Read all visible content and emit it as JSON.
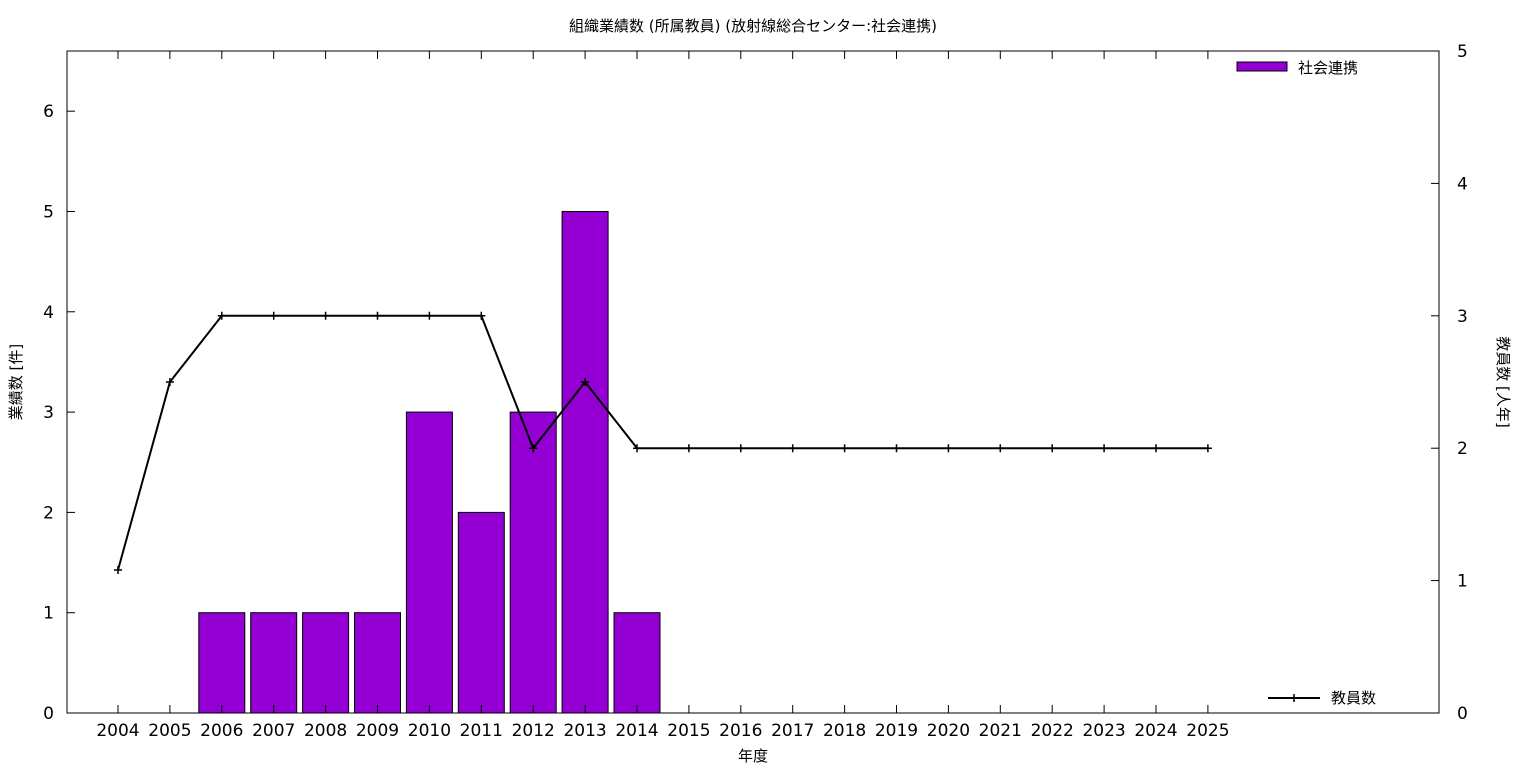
{
  "chart_data": {
    "type": "bar",
    "title": "組織業績数 (所属教員) (放射線総合センター:社会連携)",
    "xlabel": "年度",
    "ylabel": "業績数 [件]",
    "y2label": "教員数 [人年]",
    "categories": [
      "2004",
      "2005",
      "2006",
      "2007",
      "2008",
      "2009",
      "2010",
      "2011",
      "2012",
      "2013",
      "2014",
      "2015",
      "2016",
      "2017",
      "2018",
      "2019",
      "2020",
      "2021",
      "2022",
      "2023",
      "2024",
      "2025"
    ],
    "ylim": [
      0,
      6.6
    ],
    "yticks": [
      "0",
      "1",
      "2",
      "3",
      "4",
      "5",
      "6"
    ],
    "y2lim": [
      0,
      5
    ],
    "y2ticks": [
      "0",
      "1",
      "2",
      "3",
      "4",
      "5"
    ],
    "grid": false,
    "legend_placement": "top-right / bottom-right",
    "series": [
      {
        "name": "社会連携",
        "type": "bar",
        "axis": "left",
        "color": "#9400D3",
        "values": [
          0,
          0,
          1,
          1,
          1,
          1,
          3,
          2,
          3,
          5,
          1,
          0,
          0,
          0,
          0,
          0,
          0,
          0,
          0,
          0,
          0,
          0
        ]
      },
      {
        "name": "教員数",
        "type": "line",
        "axis": "right",
        "color": "#000000",
        "values": [
          1.08,
          2.5,
          3,
          3,
          3,
          3,
          3,
          3,
          2,
          2.5,
          2,
          2,
          2,
          2,
          2,
          2,
          2,
          2,
          2,
          2,
          2,
          2
        ]
      }
    ]
  }
}
